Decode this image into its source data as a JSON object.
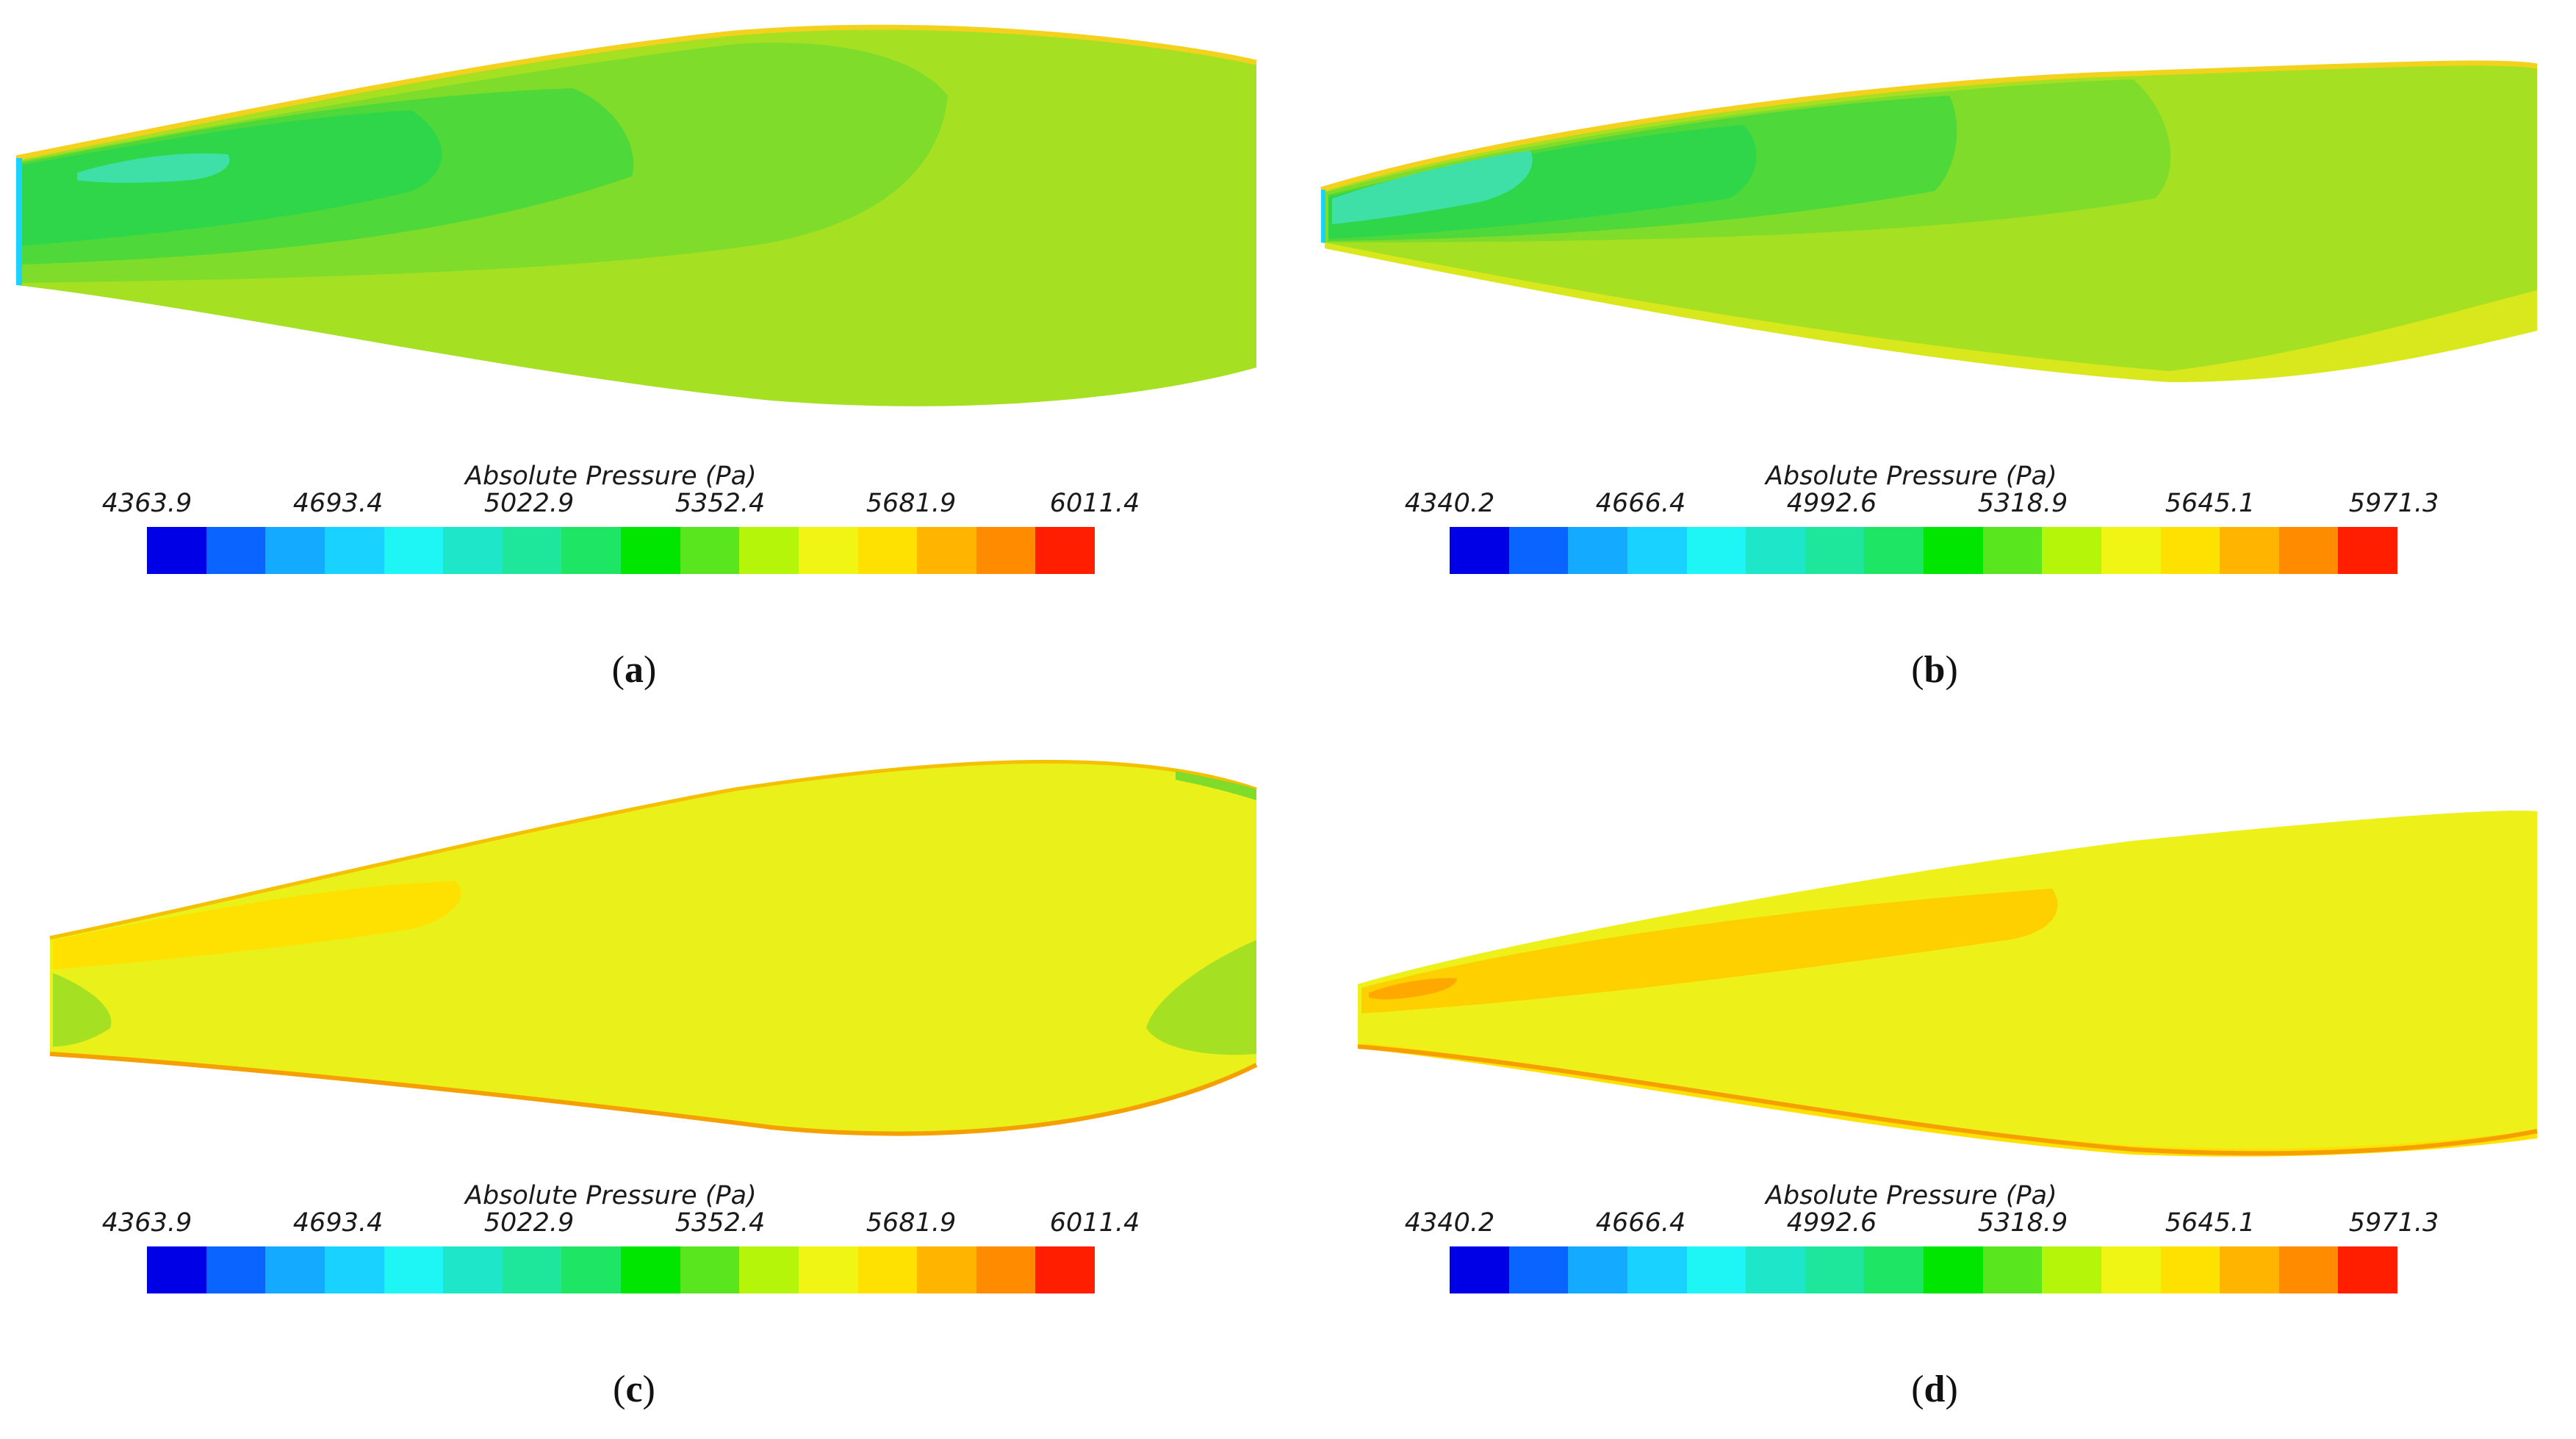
{
  "colormap": [
    "#0000e6",
    "#0a64ff",
    "#14aaff",
    "#19d2ff",
    "#1ef5f5",
    "#1ee6c8",
    "#1ee69b",
    "#1ee664",
    "#00e600",
    "#5ae61e",
    "#b4f50a",
    "#f0f514",
    "#ffe100",
    "#ffb400",
    "#ff8c00",
    "#ff1e00"
  ],
  "panels": [
    {
      "id": "a",
      "label_open": "(",
      "label_letter": "a",
      "label_close": ")",
      "legend_title": "Absolute Pressure (Pa)",
      "ticks": [
        "4363.9",
        "4693.4",
        "5022.9",
        "5352.4",
        "5681.9",
        "6011.4"
      ],
      "surface_colors": {
        "base": "#a6e023",
        "mid": "#7fdc2a",
        "low": "#2fd64a",
        "min": "#3fe0a8",
        "edge": "#f2d21c"
      }
    },
    {
      "id": "b",
      "label_open": "(",
      "label_letter": "b",
      "label_close": ")",
      "legend_title": "Absolute Pressure (Pa)",
      "ticks": [
        "4340.2",
        "4666.4",
        "4992.6",
        "5318.9",
        "5645.1",
        "5971.3"
      ],
      "surface_colors": {
        "base": "#a6e023",
        "mid": "#7fdc2a",
        "low": "#2fd64a",
        "min": "#3fe0a8",
        "edge": "#f2d21c"
      }
    },
    {
      "id": "c",
      "label_open": "(",
      "label_letter": "c",
      "label_close": ")",
      "legend_title": "Absolute Pressure (Pa)",
      "ticks": [
        "4363.9",
        "4693.4",
        "5022.9",
        "5352.4",
        "5681.9",
        "6011.4"
      ],
      "surface_colors": {
        "base": "#e9f01a",
        "mid": "#ffe100",
        "low": "#a6e023",
        "min": "#ffcf00",
        "edge": "#f5a000"
      }
    },
    {
      "id": "d",
      "label_open": "(",
      "label_letter": "d",
      "label_close": ")",
      "legend_title": "Absolute Pressure (Pa)",
      "ticks": [
        "4340.2",
        "4666.4",
        "4992.6",
        "5318.9",
        "5645.1",
        "5971.3"
      ],
      "surface_colors": {
        "base": "#eef01a",
        "mid": "#ffe100",
        "low": "#ffd000",
        "min": "#ffa800",
        "edge": "#f5a000"
      }
    }
  ]
}
